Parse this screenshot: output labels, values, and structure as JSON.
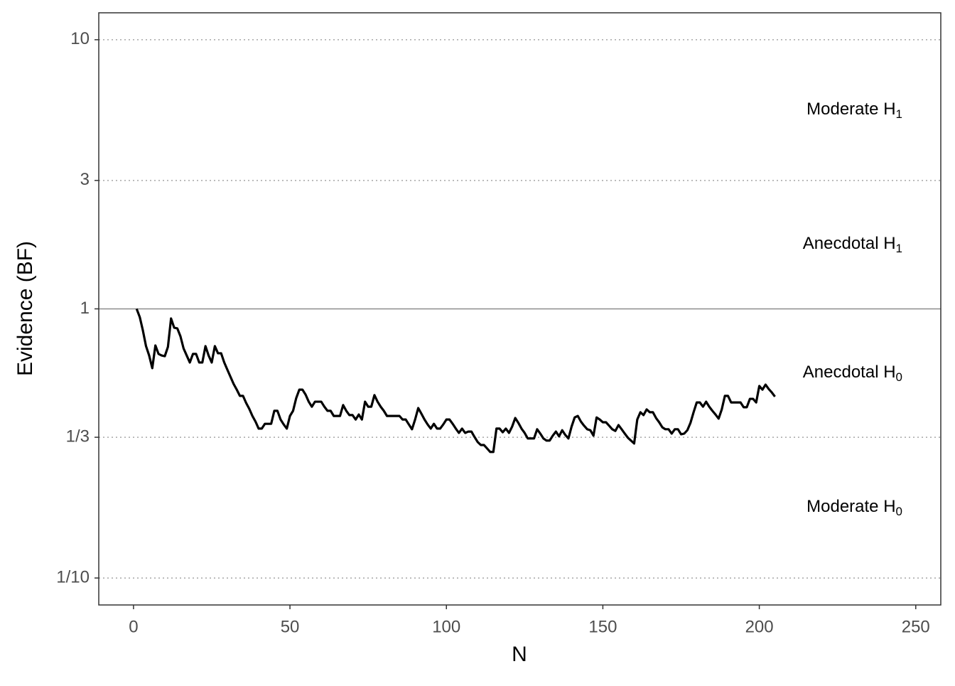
{
  "chart_data": {
    "type": "line",
    "xlabel": "N",
    "ylabel": "Evidence (BF)",
    "xlim": [
      -11.1,
      258
    ],
    "xticks": [
      0,
      50,
      100,
      150,
      200,
      250
    ],
    "ylim": [
      0.0794,
      12.59
    ],
    "ylog": true,
    "yticks": [
      {
        "value": 0.1,
        "label": "1/10"
      },
      {
        "value": 0.3333333333,
        "label": "1/3"
      },
      1,
      3,
      10
    ],
    "grid": "dotted",
    "hline": 1,
    "annotations": [
      {
        "text": "Moderate H",
        "subscript": "0"
      },
      {
        "text": "Anecdotal H",
        "subscript": "0"
      },
      {
        "text": "Anecdotal H",
        "subscript": "1"
      },
      {
        "text": "Moderate H",
        "subscript": "1"
      }
    ],
    "series": [
      {
        "color": "#000000",
        "x": [
          1,
          2,
          3,
          4,
          5,
          6,
          7,
          8,
          9,
          10,
          11,
          12,
          13,
          14,
          15,
          16,
          17,
          18,
          19,
          20,
          21,
          22,
          23,
          24,
          25,
          26,
          27,
          28,
          29,
          30,
          31,
          32,
          33,
          34,
          35,
          36,
          37,
          38,
          39,
          40,
          41,
          42,
          43,
          44,
          45,
          46,
          47,
          48,
          49,
          50,
          51,
          52,
          53,
          54,
          55,
          56,
          57,
          58,
          59,
          60,
          61,
          62,
          63,
          64,
          65,
          66,
          67,
          68,
          69,
          70,
          71,
          72,
          73,
          74,
          75,
          76,
          77,
          78,
          79,
          80,
          81,
          82,
          83,
          84,
          85,
          86,
          87,
          88,
          89,
          90,
          91,
          92,
          93,
          94,
          95,
          96,
          97,
          98,
          99,
          100,
          101,
          102,
          103,
          104,
          105,
          106,
          107,
          108,
          109,
          110,
          111,
          112,
          113,
          114,
          115,
          116,
          117,
          118,
          119,
          120,
          121,
          122,
          123,
          124,
          125,
          126,
          127,
          128,
          129,
          130,
          131,
          132,
          133,
          134,
          135,
          136,
          137,
          138,
          139,
          140,
          141,
          142,
          143,
          144,
          145,
          146,
          147,
          148,
          149,
          150,
          151,
          152,
          153,
          154,
          155,
          156,
          157,
          158,
          159,
          160,
          161,
          162,
          163,
          164,
          165,
          166,
          167,
          168,
          169,
          170,
          171,
          172,
          173,
          174,
          175,
          176,
          177,
          178,
          179,
          180,
          181,
          182,
          183,
          184,
          185,
          186,
          187,
          188,
          189,
          190,
          191,
          192,
          193,
          194,
          195,
          196,
          197,
          198,
          199,
          200,
          201,
          202,
          203,
          204,
          205
        ],
        "values": [
          1.0,
          0.932,
          0.831,
          0.727,
          0.671,
          0.602,
          0.731,
          0.68,
          0.671,
          0.667,
          0.722,
          0.921,
          0.851,
          0.846,
          0.791,
          0.713,
          0.671,
          0.632,
          0.68,
          0.68,
          0.632,
          0.632,
          0.727,
          0.671,
          0.632,
          0.727,
          0.684,
          0.684,
          0.632,
          0.594,
          0.559,
          0.526,
          0.501,
          0.475,
          0.475,
          0.447,
          0.425,
          0.4,
          0.381,
          0.359,
          0.359,
          0.374,
          0.374,
          0.374,
          0.418,
          0.418,
          0.388,
          0.372,
          0.359,
          0.4,
          0.418,
          0.466,
          0.501,
          0.501,
          0.48,
          0.452,
          0.433,
          0.452,
          0.452,
          0.452,
          0.433,
          0.418,
          0.418,
          0.4,
          0.4,
          0.4,
          0.439,
          0.418,
          0.403,
          0.403,
          0.388,
          0.405,
          0.388,
          0.452,
          0.433,
          0.433,
          0.478,
          0.452,
          0.433,
          0.418,
          0.4,
          0.4,
          0.4,
          0.4,
          0.4,
          0.388,
          0.388,
          0.372,
          0.357,
          0.388,
          0.428,
          0.408,
          0.388,
          0.372,
          0.359,
          0.374,
          0.359,
          0.359,
          0.372,
          0.388,
          0.388,
          0.374,
          0.359,
          0.346,
          0.359,
          0.346,
          0.35,
          0.35,
          0.334,
          0.32,
          0.312,
          0.312,
          0.303,
          0.294,
          0.294,
          0.359,
          0.359,
          0.348,
          0.359,
          0.346,
          0.365,
          0.393,
          0.377,
          0.359,
          0.346,
          0.33,
          0.33,
          0.33,
          0.357,
          0.344,
          0.33,
          0.324,
          0.324,
          0.338,
          0.35,
          0.336,
          0.354,
          0.34,
          0.33,
          0.365,
          0.395,
          0.4,
          0.381,
          0.368,
          0.357,
          0.354,
          0.338,
          0.395,
          0.388,
          0.379,
          0.379,
          0.368,
          0.357,
          0.352,
          0.37,
          0.357,
          0.344,
          0.332,
          0.324,
          0.316,
          0.388,
          0.413,
          0.403,
          0.423,
          0.413,
          0.413,
          0.393,
          0.379,
          0.363,
          0.357,
          0.357,
          0.344,
          0.357,
          0.357,
          0.342,
          0.344,
          0.354,
          0.377,
          0.413,
          0.449,
          0.449,
          0.433,
          0.452,
          0.433,
          0.418,
          0.405,
          0.391,
          0.423,
          0.475,
          0.475,
          0.449,
          0.449,
          0.449,
          0.449,
          0.431,
          0.431,
          0.463,
          0.463,
          0.449,
          0.517,
          0.501,
          0.523,
          0.504,
          0.489,
          0.472
        ]
      }
    ]
  }
}
